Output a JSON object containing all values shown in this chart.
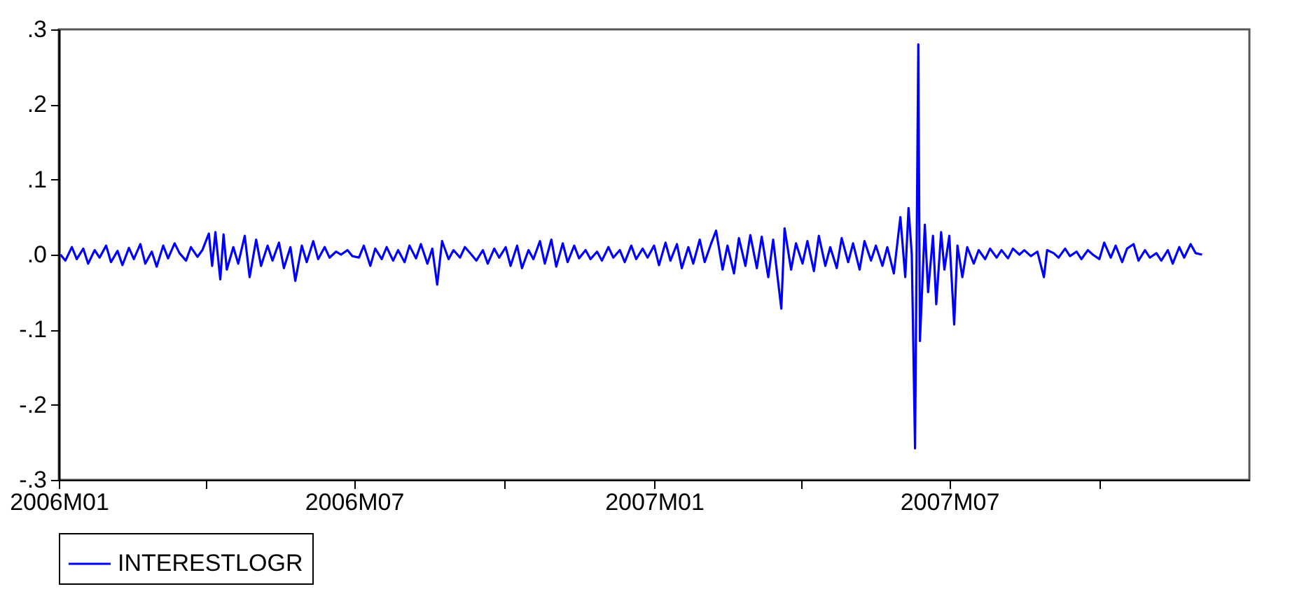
{
  "chart_data": {
    "type": "line",
    "xlim": [
      "2006-01-01",
      "2008-01-01"
    ],
    "xticks": [
      {
        "value": "2006-01-01",
        "label": "2006M01"
      },
      {
        "value": "2006-04-01",
        "label": null
      },
      {
        "value": "2006-07-01",
        "label": "2006M07"
      },
      {
        "value": "2006-10-01",
        "label": null
      },
      {
        "value": "2007-01-01",
        "label": "2007M01"
      },
      {
        "value": "2007-04-01",
        "label": null
      },
      {
        "value": "2007-07-01",
        "label": "2007M07"
      },
      {
        "value": "2007-10-01",
        "label": null
      }
    ],
    "ylim": [
      -0.3,
      0.3
    ],
    "yticks": [
      {
        "value": 0.3,
        "label": ".3"
      },
      {
        "value": 0.2,
        "label": ".2"
      },
      {
        "value": 0.1,
        "label": ".1"
      },
      {
        "value": 0,
        "label": ".0"
      },
      {
        "value": -0.1,
        "label": "-.1"
      },
      {
        "value": -0.2,
        "label": "-.2"
      },
      {
        "value": -0.3,
        "label": "-.3"
      }
    ],
    "grid": false,
    "legend": "bottom",
    "line_style": "solid",
    "x": [
      "2006-01-02",
      "2006-01-05",
      "2006-01-09",
      "2006-01-12",
      "2006-01-16",
      "2006-01-19",
      "2006-01-23",
      "2006-01-26",
      "2006-01-30",
      "2006-02-02",
      "2006-02-06",
      "2006-02-09",
      "2006-02-13",
      "2006-02-16",
      "2006-02-20",
      "2006-02-23",
      "2006-02-27",
      "2006-03-02",
      "2006-03-06",
      "2006-03-09",
      "2006-03-13",
      "2006-03-16",
      "2006-03-20",
      "2006-03-23",
      "2006-03-27",
      "2006-03-30",
      "2006-04-03",
      "2006-04-05",
      "2006-04-07",
      "2006-04-10",
      "2006-04-12",
      "2006-04-14",
      "2006-04-18",
      "2006-04-21",
      "2006-04-25",
      "2006-04-28",
      "2006-05-02",
      "2006-05-05",
      "2006-05-09",
      "2006-05-12",
      "2006-05-16",
      "2006-05-19",
      "2006-05-23",
      "2006-05-26",
      "2006-05-30",
      "2006-06-02",
      "2006-06-06",
      "2006-06-09",
      "2006-06-13",
      "2006-06-16",
      "2006-06-20",
      "2006-06-23",
      "2006-06-27",
      "2006-06-30",
      "2006-07-04",
      "2006-07-07",
      "2006-07-11",
      "2006-07-14",
      "2006-07-18",
      "2006-07-21",
      "2006-07-25",
      "2006-07-28",
      "2006-08-01",
      "2006-08-04",
      "2006-08-08",
      "2006-08-11",
      "2006-08-15",
      "2006-08-18",
      "2006-08-21",
      "2006-08-24",
      "2006-08-28",
      "2006-08-31",
      "2006-09-04",
      "2006-09-07",
      "2006-09-11",
      "2006-09-14",
      "2006-09-18",
      "2006-09-21",
      "2006-09-25",
      "2006-09-28",
      "2006-10-02",
      "2006-10-05",
      "2006-10-09",
      "2006-10-12",
      "2006-10-16",
      "2006-10-19",
      "2006-10-23",
      "2006-10-26",
      "2006-10-30",
      "2006-11-02",
      "2006-11-06",
      "2006-11-09",
      "2006-11-13",
      "2006-11-16",
      "2006-11-20",
      "2006-11-23",
      "2006-11-27",
      "2006-11-30",
      "2006-12-04",
      "2006-12-07",
      "2006-12-11",
      "2006-12-14",
      "2006-12-18",
      "2006-12-21",
      "2006-12-25",
      "2006-12-28",
      "2007-01-01",
      "2007-01-04",
      "2007-01-08",
      "2007-01-11",
      "2007-01-15",
      "2007-01-18",
      "2007-01-22",
      "2007-01-25",
      "2007-01-29",
      "2007-02-01",
      "2007-02-05",
      "2007-02-08",
      "2007-02-12",
      "2007-02-15",
      "2007-02-19",
      "2007-02-22",
      "2007-02-26",
      "2007-03-01",
      "2007-03-05",
      "2007-03-08",
      "2007-03-12",
      "2007-03-15",
      "2007-03-20",
      "2007-03-22",
      "2007-03-26",
      "2007-03-29",
      "2007-04-02",
      "2007-04-05",
      "2007-04-09",
      "2007-04-12",
      "2007-04-16",
      "2007-04-19",
      "2007-04-23",
      "2007-04-26",
      "2007-04-30",
      "2007-05-03",
      "2007-05-07",
      "2007-05-10",
      "2007-05-14",
      "2007-05-17",
      "2007-05-21",
      "2007-05-24",
      "2007-05-28",
      "2007-06-01",
      "2007-06-04",
      "2007-06-06",
      "2007-06-08",
      "2007-06-10",
      "2007-06-12",
      "2007-06-13",
      "2007-06-16",
      "2007-06-18",
      "2007-06-21",
      "2007-06-23",
      "2007-06-26",
      "2007-06-28",
      "2007-07-01",
      "2007-07-04",
      "2007-07-06",
      "2007-07-09",
      "2007-07-12",
      "2007-07-16",
      "2007-07-19",
      "2007-07-23",
      "2007-07-26",
      "2007-07-30",
      "2007-08-02",
      "2007-08-06",
      "2007-08-09",
      "2007-08-13",
      "2007-08-16",
      "2007-08-20",
      "2007-08-24",
      "2007-08-28",
      "2007-08-30",
      "2007-09-03",
      "2007-09-06",
      "2007-09-10",
      "2007-09-13",
      "2007-09-17",
      "2007-09-20",
      "2007-09-24",
      "2007-09-27",
      "2007-10-01",
      "2007-10-04",
      "2007-10-08",
      "2007-10-11",
      "2007-10-15",
      "2007-10-18",
      "2007-10-22",
      "2007-10-25",
      "2007-10-29",
      "2007-11-01",
      "2007-11-05",
      "2007-11-08",
      "2007-11-12",
      "2007-11-15",
      "2007-11-19",
      "2007-11-22",
      "2007-11-26",
      "2007-11-29",
      "2007-12-03"
    ],
    "series": [
      {
        "name": "INTERESTLOGR",
        "color": "#0000ff",
        "values": [
          0.0,
          -0.008,
          0.01,
          -0.006,
          0.008,
          -0.012,
          0.006,
          -0.004,
          0.012,
          -0.01,
          0.005,
          -0.014,
          0.009,
          -0.006,
          0.014,
          -0.012,
          0.004,
          -0.016,
          0.012,
          -0.005,
          0.015,
          0.002,
          -0.008,
          0.01,
          -0.003,
          0.006,
          0.028,
          -0.015,
          0.03,
          -0.033,
          0.027,
          -0.02,
          0.01,
          -0.012,
          0.025,
          -0.03,
          0.02,
          -0.015,
          0.012,
          -0.008,
          0.016,
          -0.018,
          0.01,
          -0.035,
          0.012,
          -0.01,
          0.018,
          -0.006,
          0.01,
          -0.004,
          0.004,
          0.0,
          0.006,
          -0.002,
          -0.004,
          0.012,
          -0.015,
          0.008,
          -0.006,
          0.01,
          -0.008,
          0.006,
          -0.01,
          0.012,
          -0.005,
          0.014,
          -0.012,
          0.008,
          -0.04,
          0.018,
          -0.006,
          0.006,
          -0.004,
          0.01,
          0.0,
          -0.008,
          0.006,
          -0.012,
          0.008,
          -0.004,
          0.01,
          -0.015,
          0.012,
          -0.018,
          0.006,
          -0.006,
          0.018,
          -0.012,
          0.02,
          -0.016,
          0.015,
          -0.01,
          0.012,
          -0.005,
          0.006,
          -0.006,
          0.004,
          -0.008,
          0.01,
          -0.004,
          0.006,
          -0.01,
          0.012,
          -0.006,
          0.008,
          -0.004,
          0.012,
          -0.014,
          0.016,
          -0.008,
          0.014,
          -0.018,
          0.01,
          -0.012,
          0.02,
          -0.01,
          0.015,
          0.032,
          -0.02,
          0.012,
          -0.025,
          0.022,
          -0.015,
          0.026,
          -0.018,
          0.024,
          -0.03,
          0.02,
          -0.072,
          0.035,
          -0.02,
          0.015,
          -0.012,
          0.018,
          -0.022,
          0.025,
          -0.015,
          0.01,
          -0.018,
          0.022,
          -0.01,
          0.015,
          -0.02,
          0.018,
          -0.008,
          0.012,
          -0.015,
          0.01,
          -0.025,
          0.05,
          -0.03,
          0.062,
          0.0,
          -0.258,
          0.28,
          -0.115,
          0.04,
          -0.05,
          0.025,
          -0.066,
          0.03,
          -0.02,
          0.025,
          -0.093,
          0.012,
          -0.03,
          0.01,
          -0.012,
          0.006,
          -0.006,
          0.008,
          -0.004,
          0.006,
          -0.005,
          0.008,
          0.0,
          0.006,
          -0.002,
          0.004,
          -0.03,
          0.006,
          0.002,
          -0.004,
          0.008,
          -0.002,
          0.004,
          -0.006,
          0.006,
          0.0,
          -0.006,
          0.016,
          -0.004,
          0.012,
          -0.01,
          0.008,
          0.014,
          -0.008,
          0.006,
          -0.004,
          0.002,
          -0.008,
          0.006,
          -0.012,
          0.01,
          -0.004,
          0.014,
          0.002,
          0.0
        ]
      }
    ]
  }
}
